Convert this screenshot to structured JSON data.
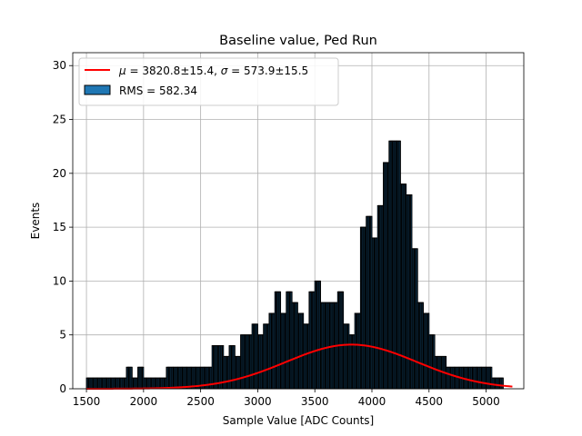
{
  "chart_data": {
    "type": "bar",
    "title": "Baseline value, Ped Run",
    "xlabel": "Sample Value [ADC Counts]",
    "ylabel": "Events",
    "xlim": [
      1380,
      5330
    ],
    "ylim": [
      0,
      31.2
    ],
    "xticks": [
      1500,
      2000,
      2500,
      3000,
      3500,
      4000,
      4500,
      5000
    ],
    "yticks": [
      0,
      5,
      10,
      15,
      20,
      25,
      30
    ],
    "grid": true,
    "legend_position": "top-left",
    "histogram": {
      "bin_width": 10,
      "profile": [
        [
          1500,
          1
        ],
        [
          1760,
          1
        ],
        [
          1800,
          1
        ],
        [
          1850,
          2
        ],
        [
          1900,
          1
        ],
        [
          1950,
          2
        ],
        [
          2000,
          1
        ],
        [
          2100,
          1
        ],
        [
          2200,
          2
        ],
        [
          2300,
          2
        ],
        [
          2400,
          2
        ],
        [
          2500,
          2
        ],
        [
          2600,
          4
        ],
        [
          2700,
          3
        ],
        [
          2750,
          4
        ],
        [
          2800,
          3
        ],
        [
          2850,
          5
        ],
        [
          2900,
          5
        ],
        [
          2950,
          6
        ],
        [
          3000,
          5
        ],
        [
          3050,
          6
        ],
        [
          3100,
          7
        ],
        [
          3150,
          9
        ],
        [
          3200,
          7
        ],
        [
          3250,
          9
        ],
        [
          3300,
          8
        ],
        [
          3350,
          7
        ],
        [
          3400,
          6
        ],
        [
          3450,
          9
        ],
        [
          3500,
          10
        ],
        [
          3550,
          8
        ],
        [
          3600,
          8
        ],
        [
          3650,
          8
        ],
        [
          3700,
          9
        ],
        [
          3750,
          6
        ],
        [
          3800,
          5
        ],
        [
          3850,
          7
        ],
        [
          3900,
          15
        ],
        [
          3950,
          16
        ],
        [
          4000,
          14
        ],
        [
          4050,
          17
        ],
        [
          4100,
          21
        ],
        [
          4150,
          23
        ],
        [
          4200,
          23
        ],
        [
          4250,
          19
        ],
        [
          4300,
          18
        ],
        [
          4350,
          13
        ],
        [
          4400,
          8
        ],
        [
          4450,
          7
        ],
        [
          4500,
          5
        ],
        [
          4550,
          3
        ],
        [
          4600,
          3
        ],
        [
          4650,
          2
        ],
        [
          4700,
          2
        ],
        [
          4750,
          2
        ],
        [
          4800,
          2
        ],
        [
          4850,
          2
        ],
        [
          4900,
          2
        ],
        [
          4950,
          2
        ],
        [
          5000,
          2
        ],
        [
          5050,
          1
        ],
        [
          5100,
          1
        ]
      ]
    },
    "series": [
      {
        "name": "$\\mu = 3820.8\\pm15.4$, $\\sigma = 573.9\\pm15.5$",
        "kind": "gaussian-fit",
        "mu": 3820.8,
        "sigma": 573.9,
        "peak": 4.1,
        "x_range": [
          1500,
          5230
        ],
        "color": "#ff0000"
      },
      {
        "name": "RMS = 582.34",
        "kind": "histogram",
        "color": "#1f77b4",
        "edgecolor": "#000000"
      }
    ],
    "legend": {
      "fit_label_parts": [
        "μ",
        " = 3820.8±15.4, ",
        "σ",
        " = 573.9±15.5"
      ],
      "rms_label": "RMS = 582.34"
    }
  }
}
